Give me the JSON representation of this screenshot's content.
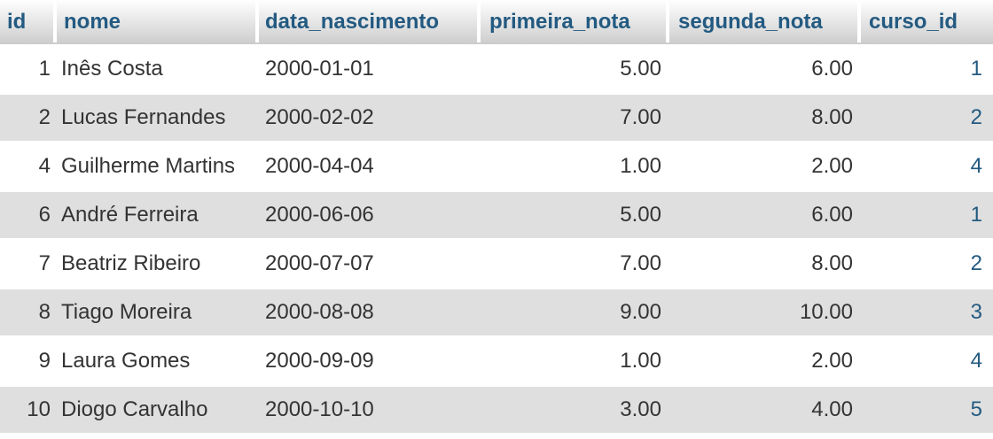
{
  "table": {
    "headers": [
      "id",
      "nome",
      "data_nascimento",
      "primeira_nota",
      "segunda_nota",
      "curso_id"
    ],
    "rows": [
      [
        "1",
        "Inês Costa",
        "2000-01-01",
        "5.00",
        "6.00",
        "1"
      ],
      [
        "2",
        "Lucas Fernandes",
        "2000-02-02",
        "7.00",
        "8.00",
        "2"
      ],
      [
        "4",
        "Guilherme Martins",
        "2000-04-04",
        "1.00",
        "2.00",
        "4"
      ],
      [
        "6",
        "André Ferreira",
        "2000-06-06",
        "5.00",
        "6.00",
        "1"
      ],
      [
        "7",
        "Beatriz Ribeiro",
        "2000-07-07",
        "7.00",
        "8.00",
        "2"
      ],
      [
        "8",
        "Tiago Moreira",
        "2000-08-08",
        "9.00",
        "10.00",
        "3"
      ],
      [
        "9",
        "Laura Gomes",
        "2000-09-09",
        "1.00",
        "2.00",
        "4"
      ],
      [
        "10",
        "Diogo Carvalho",
        "2000-10-10",
        "3.00",
        "4.00",
        "5"
      ]
    ]
  },
  "colors": {
    "header_text": "#235a81",
    "link": "#235a81",
    "row_alt": "#dfdfdf",
    "text": "#333333"
  }
}
